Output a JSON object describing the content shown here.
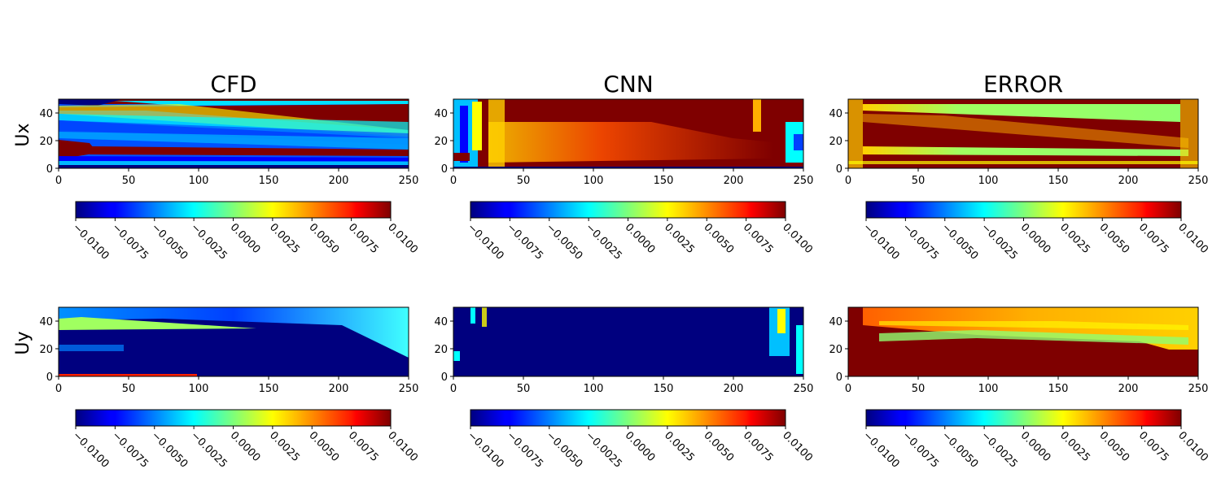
{
  "chart_data": {
    "type": "heatmap",
    "colormap": "jet",
    "column_titles": [
      "CFD",
      "CNN",
      "ERROR"
    ],
    "row_labels": [
      "Ux",
      "Uy"
    ],
    "x_ticks": [
      "0",
      "50",
      "100",
      "150",
      "200",
      "250"
    ],
    "y_ticks": [
      "0",
      "20",
      "40"
    ],
    "xlim": [
      0,
      250
    ],
    "ylim": [
      0,
      50
    ],
    "colorbar": {
      "range": [
        -0.01,
        0.01
      ],
      "ticks": [
        "−0.0100",
        "−0.0075",
        "−0.0050",
        "−0.0025",
        "0.0000",
        "0.0025",
        "0.0050",
        "0.0075",
        "0.0100"
      ]
    },
    "panels": [
      {
        "row": "Ux",
        "column": "CFD"
      },
      {
        "row": "Ux",
        "column": "CNN"
      },
      {
        "row": "Ux",
        "column": "ERROR"
      },
      {
        "row": "Uy",
        "column": "CFD"
      },
      {
        "row": "Uy",
        "column": "CNN"
      },
      {
        "row": "Uy",
        "column": "ERROR"
      }
    ]
  }
}
